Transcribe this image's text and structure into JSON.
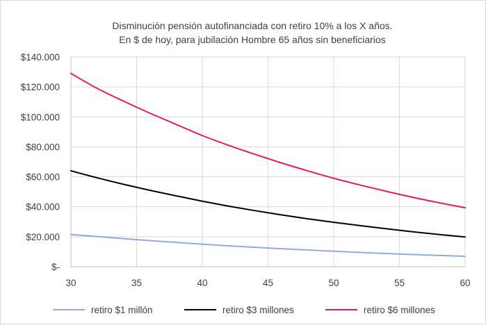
{
  "chart_data": {
    "type": "line",
    "title": "Disminución pensión autofinanciada con retiro 10% a los X años.",
    "subtitle": "En $ de hoy, para jubilación Hombre 65 años sin beneficiarios",
    "xlabel": "",
    "ylabel": "",
    "xlim": [
      30,
      60
    ],
    "ylim": [
      0,
      140000
    ],
    "grid": true,
    "legend_position": "bottom",
    "x_ticks": [
      "30",
      "35",
      "40",
      "45",
      "50",
      "55",
      "60"
    ],
    "y_ticks": [
      "$-",
      "$20.000",
      "$40.000",
      "$60.000",
      "$80.000",
      "$100.000",
      "$120.000",
      "$140.000"
    ],
    "x": [
      30,
      32,
      34,
      36,
      38,
      40,
      42,
      44,
      46,
      48,
      50,
      52,
      54,
      56,
      58,
      60
    ],
    "series": [
      {
        "name": "retiro $1 millón",
        "color": "#8faadc",
        "values": [
          21500,
          20100,
          18700,
          17400,
          16200,
          15000,
          13900,
          12900,
          12000,
          11100,
          10300,
          9500,
          8800,
          8100,
          7500,
          6900
        ]
      },
      {
        "name": "retiro $3 millones",
        "color": "#000000",
        "values": [
          64000,
          59300,
          55000,
          51000,
          47300,
          43700,
          40400,
          37400,
          34600,
          32000,
          29600,
          27400,
          25300,
          23300,
          21500,
          19800
        ]
      },
      {
        "name": "retiro $6 millones",
        "color": "#e8166b",
        "values": [
          129000,
          119000,
          110500,
          102500,
          95000,
          87500,
          81000,
          75000,
          69300,
          64000,
          59000,
          54500,
          50300,
          46300,
          42700,
          39300
        ]
      }
    ]
  }
}
